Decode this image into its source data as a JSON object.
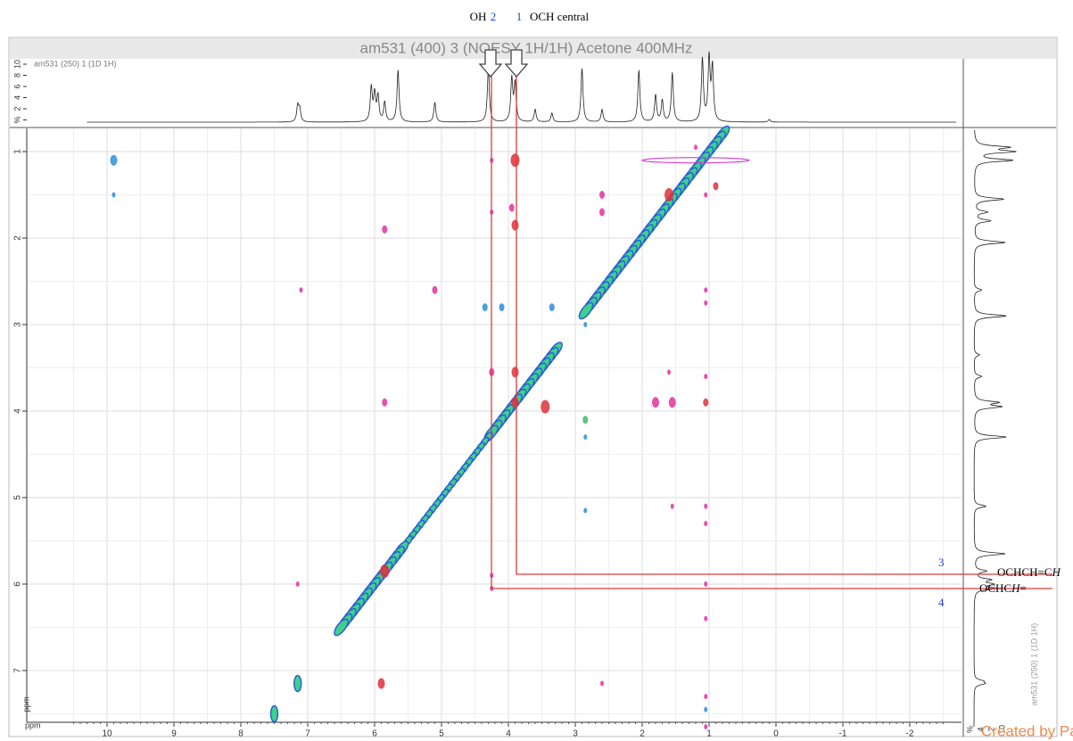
{
  "annotations": {
    "oh": "OH",
    "n2": "2",
    "n1": "1",
    "och_central": "OCH central",
    "n3": "3",
    "n4": "4",
    "och_ch_ch": "OCHCH=C",
    "och_ch_ch_italic": "H",
    "och_ch": "OCHC",
    "och_ch_italic": "H",
    "och_ch_end": "="
  },
  "title": "am531 (400) 3 (NOESY 1H/1H) Acetone 400MHz",
  "top_spectrum": {
    "label": "am531 (250) 1 (1D 1H)",
    "y_ticks": [
      "10",
      "8",
      "6",
      "4",
      "2",
      "%"
    ]
  },
  "side_spectrum": {
    "label": "am531 (250) 1 (1D 1H)",
    "x_ticks": [
      "%",
      "4",
      "2",
      "10"
    ]
  },
  "x_axis": {
    "unit": "ppm",
    "ticks": [
      "10",
      "9",
      "8",
      "7",
      "6",
      "5",
      "4",
      "3",
      "2",
      "1",
      "0",
      "-1",
      "-2"
    ]
  },
  "y_axis": {
    "unit": "ppm",
    "ticks": [
      "1",
      "2",
      "3",
      "4",
      "5",
      "6",
      "7"
    ]
  },
  "watermark": "Created by Paint X"
}
